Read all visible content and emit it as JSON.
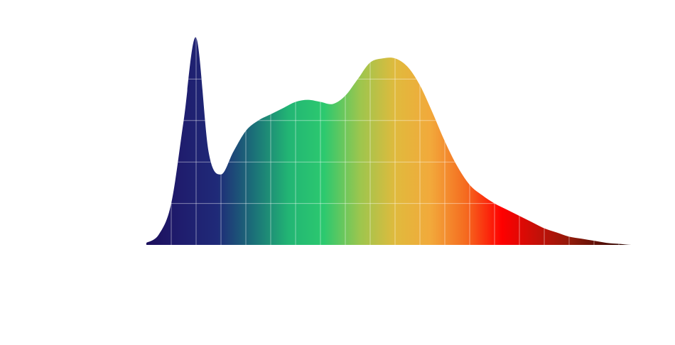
{
  "chart_data": {
    "type": "area",
    "title": "",
    "xlabel": "",
    "ylabel": "",
    "x": [
      380,
      390,
      400,
      410,
      420,
      430,
      440,
      450,
      460,
      470,
      480,
      490,
      500,
      510,
      520,
      530,
      540,
      550,
      560,
      570,
      580,
      590,
      600,
      610,
      620,
      630,
      640,
      650,
      660,
      670,
      680,
      690,
      700,
      710,
      720,
      730,
      740,
      750,
      760,
      770,
      780
    ],
    "values": [
      0.01,
      0.05,
      0.2,
      0.6,
      1.0,
      0.45,
      0.34,
      0.45,
      0.55,
      0.6,
      0.63,
      0.66,
      0.69,
      0.7,
      0.69,
      0.68,
      0.72,
      0.8,
      0.88,
      0.9,
      0.9,
      0.86,
      0.77,
      0.64,
      0.5,
      0.38,
      0.29,
      0.24,
      0.2,
      0.17,
      0.14,
      0.11,
      0.08,
      0.06,
      0.04,
      0.03,
      0.02,
      0.01,
      0.005,
      0.0,
      0.0
    ],
    "xlim": [
      380,
      780
    ],
    "ylim": [
      0,
      1
    ],
    "grid": true,
    "legend": "none",
    "gradient_colors": [
      "#1c0f5c",
      "#1f1d6e",
      "#1f2a78",
      "#1b6f78",
      "#22b574",
      "#2cc96f",
      "#9bc64e",
      "#e0ba3d",
      "#f2a93b",
      "#f56a1f",
      "#ff0000",
      "#c51008",
      "#8d1a0a",
      "#4a0c05",
      "#1a0503"
    ],
    "grid_color": "#ffffff"
  }
}
